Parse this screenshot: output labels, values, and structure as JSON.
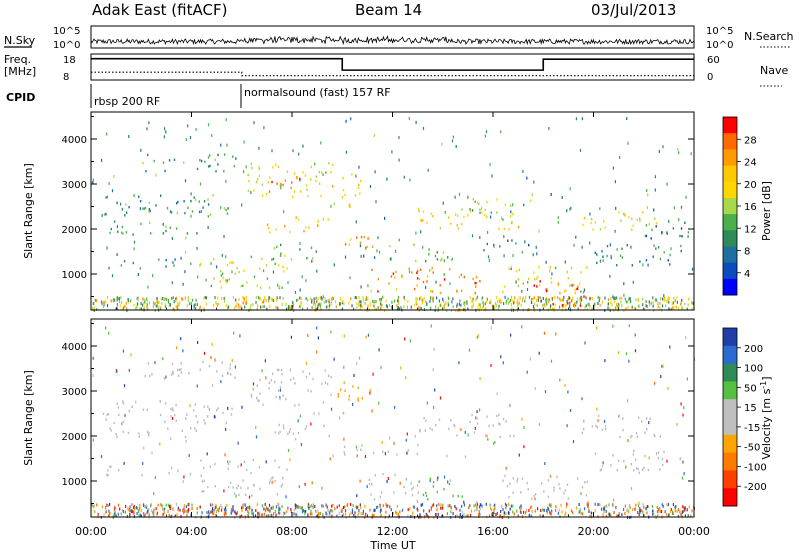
{
  "header": {
    "station": "Adak East (fitACF)",
    "beam": "Beam 14",
    "date": "03/Jul/2013"
  },
  "status_panels": {
    "left_labels": [
      "N.Sky",
      "Freq.",
      "[MHz]",
      "CPID"
    ],
    "right_labels": [
      "N.Search",
      "Nave"
    ],
    "noise_ticks": [
      "10^5",
      "10^0"
    ],
    "freq_ticks": [
      "18",
      "8"
    ],
    "nave_ticks": [
      "60",
      "0"
    ],
    "cpid_segments": [
      {
        "label": "rbsp 200 RF",
        "start_hour": 0,
        "end_hour": 6
      },
      {
        "label": "normalsound (fast) 157 RF",
        "start_hour": 6,
        "end_hour": 24
      }
    ],
    "freq_steps": [
      {
        "start_hour": 0,
        "end_hour": 10,
        "mhz": 16.2
      },
      {
        "start_hour": 10,
        "end_hour": 18,
        "mhz": 11.8
      },
      {
        "start_hour": 18,
        "end_hour": 24,
        "mhz": 16.0
      }
    ],
    "nave_steps": [
      {
        "start_hour": 0,
        "end_hour": 6,
        "value": 18
      },
      {
        "start_hour": 6,
        "end_hour": 24,
        "value": 10
      }
    ]
  },
  "chart_data": [
    {
      "type": "heatmap",
      "panel": "power",
      "ylabel": "Slant Range [km]",
      "colorbar_label": "Power [dB]",
      "colorbar_ticks": [
        "28",
        "24",
        "20",
        "16",
        "12",
        "8",
        "4"
      ],
      "colorbar_colors": [
        "#ff0000",
        "#ff6a00",
        "#ff9a00",
        "#ffc800",
        "#ffd700",
        "#a6d84a",
        "#4bb04b",
        "#2e8b57",
        "#1e6f9f",
        "#0a4bbd",
        "#0000ff"
      ],
      "yticks": [
        1000,
        2000,
        3000,
        4000
      ],
      "ylim": [
        200,
        4600
      ],
      "regions": [
        {
          "t0": 0.3,
          "t1": 5.7,
          "r0": 2300,
          "r1": 2800,
          "level": 10
        },
        {
          "t0": 0.5,
          "t1": 4.2,
          "r0": 1900,
          "r1": 2200,
          "level": 12
        },
        {
          "t0": 0.6,
          "t1": 4.0,
          "r0": 1150,
          "r1": 1350,
          "level": 9
        },
        {
          "t0": 2.0,
          "t1": 5.8,
          "r0": 3300,
          "r1": 3700,
          "level": 10
        },
        {
          "t0": 4.3,
          "t1": 7.8,
          "r0": 700,
          "r1": 1500,
          "level": 16
        },
        {
          "t0": 6.2,
          "t1": 9.6,
          "r0": 2700,
          "r1": 3500,
          "level": 18
        },
        {
          "t0": 7.0,
          "t1": 8.8,
          "r0": 2850,
          "r1": 3200,
          "level": 27
        },
        {
          "t0": 7.0,
          "t1": 9.8,
          "r0": 1950,
          "r1": 2300,
          "level": 22
        },
        {
          "t0": 7.2,
          "t1": 9.0,
          "r0": 1300,
          "r1": 1700,
          "level": 12
        },
        {
          "t0": 9.8,
          "t1": 10.8,
          "r0": 2500,
          "r1": 3300,
          "level": 20
        },
        {
          "t0": 10.0,
          "t1": 13.0,
          "r0": 1600,
          "r1": 1850,
          "level": 24
        },
        {
          "t0": 11.0,
          "t1": 15.5,
          "r0": 600,
          "r1": 1200,
          "level": 25
        },
        {
          "t0": 12.0,
          "t1": 14.5,
          "r0": 1300,
          "r1": 1600,
          "level": 12
        },
        {
          "t0": 13.0,
          "t1": 17.0,
          "r0": 2000,
          "r1": 2500,
          "level": 18
        },
        {
          "t0": 15.0,
          "t1": 17.5,
          "r0": 2300,
          "r1": 2700,
          "level": 14
        },
        {
          "t0": 16.3,
          "t1": 19.8,
          "r0": 600,
          "r1": 1200,
          "level": 18
        },
        {
          "t0": 17.5,
          "t1": 19.7,
          "r0": 300,
          "r1": 900,
          "level": 29
        },
        {
          "t0": 19.5,
          "t1": 22.8,
          "r0": 2000,
          "r1": 2500,
          "level": 17
        },
        {
          "t0": 20.0,
          "t1": 23.5,
          "r0": 1200,
          "r1": 1700,
          "level": 9
        },
        {
          "t0": 22.0,
          "t1": 23.8,
          "r0": 1700,
          "r1": 2200,
          "level": 7
        },
        {
          "t0": 15.5,
          "t1": 17.5,
          "r0": 1500,
          "r1": 1800,
          "level": 8
        }
      ]
    },
    {
      "type": "heatmap",
      "panel": "velocity",
      "ylabel": "Slant Range [km]",
      "xlabel": "Time UT",
      "colorbar_label": "Velocity [m s^-1]",
      "colorbar_ticks": [
        "200",
        "100",
        "50",
        "15",
        "-15",
        "-50",
        "-100",
        "-200"
      ],
      "colorbar_colors": [
        "#1f3fa8",
        "#2b6ad0",
        "#2e8b57",
        "#55c040",
        "#bfbfbf",
        "#bfbfbf",
        "#ffa500",
        "#ff7b00",
        "#ff4000",
        "#ff0000"
      ],
      "xticks": [
        "00:00",
        "04:00",
        "08:00",
        "12:00",
        "16:00",
        "20:00",
        "00:00"
      ],
      "yticks": [
        1000,
        2000,
        3000,
        4000
      ],
      "ylim": [
        200,
        4600
      ],
      "regions": [
        {
          "t0": 0.3,
          "t1": 5.7,
          "r0": 2300,
          "r1": 2800,
          "v": -5
        },
        {
          "t0": 0.5,
          "t1": 4.2,
          "r0": 1900,
          "r1": 2200,
          "v": 5
        },
        {
          "t0": 0.6,
          "t1": 4.0,
          "r0": 1150,
          "r1": 1350,
          "v": -10
        },
        {
          "t0": 2.0,
          "t1": 5.8,
          "r0": 3300,
          "r1": 3700,
          "v": 0
        },
        {
          "t0": 4.3,
          "t1": 7.8,
          "r0": 700,
          "r1": 1500,
          "v": -5
        },
        {
          "t0": 6.2,
          "t1": 9.6,
          "r0": 2700,
          "r1": 3500,
          "v": 0
        },
        {
          "t0": 7.0,
          "t1": 9.8,
          "r0": 1950,
          "r1": 2300,
          "v": 5
        },
        {
          "t0": 9.8,
          "t1": 10.8,
          "r0": 2500,
          "r1": 3300,
          "v": -60
        },
        {
          "t0": 10.0,
          "t1": 13.0,
          "r0": 1600,
          "r1": 1850,
          "v": 0
        },
        {
          "t0": 11.0,
          "t1": 13.0,
          "r0": 600,
          "r1": 1200,
          "v": -5
        },
        {
          "t0": 13.0,
          "t1": 14.8,
          "r0": 600,
          "r1": 1100,
          "v": 30
        },
        {
          "t0": 13.0,
          "t1": 17.0,
          "r0": 2000,
          "r1": 2500,
          "v": 0
        },
        {
          "t0": 15.6,
          "t1": 16.1,
          "r0": 1700,
          "r1": 2000,
          "v": 30
        },
        {
          "t0": 16.3,
          "t1": 19.8,
          "r0": 600,
          "r1": 1200,
          "v": -5
        },
        {
          "t0": 19.5,
          "t1": 22.8,
          "r0": 2000,
          "r1": 2500,
          "v": 0
        },
        {
          "t0": 20.0,
          "t1": 23.5,
          "r0": 1200,
          "r1": 1700,
          "v": -5
        }
      ]
    }
  ]
}
